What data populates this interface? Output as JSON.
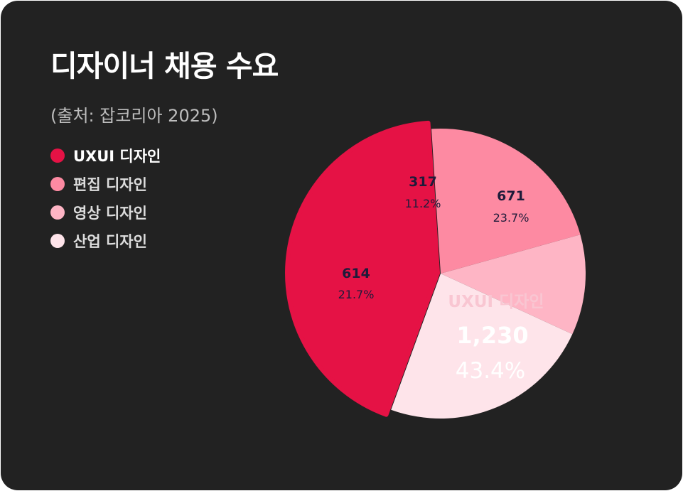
{
  "header": {
    "title": "디자이너 채용 수요",
    "subtitle": "(출처: 잡코리아 2025)"
  },
  "colors": {
    "background": "#222222",
    "uxui": "#e51245",
    "editing": "#fd8aa2",
    "video": "#feb5c5",
    "industrial": "#fee4ea"
  },
  "chart_data": {
    "type": "pie",
    "title": "디자이너 채용 수요",
    "legend_position": "left",
    "slices": [
      {
        "label": "UXUI 디자인",
        "value": 1230,
        "value_text": "1,230",
        "percent": 43.4,
        "percent_text": "43.4%",
        "color": "#e51245",
        "highlighted": true
      },
      {
        "label": "편집 디자인",
        "value": 614,
        "value_text": "614",
        "percent": 21.7,
        "percent_text": "21.7%",
        "color": "#fd8aa2",
        "highlighted": false
      },
      {
        "label": "영상 디자인",
        "value": 317,
        "value_text": "317",
        "percent": 11.2,
        "percent_text": "11.2%",
        "color": "#feb5c5",
        "highlighted": false
      },
      {
        "label": "산업 디자인",
        "value": 671,
        "value_text": "671",
        "percent": 23.7,
        "percent_text": "23.7%",
        "color": "#fee4ea",
        "highlighted": false
      }
    ]
  }
}
